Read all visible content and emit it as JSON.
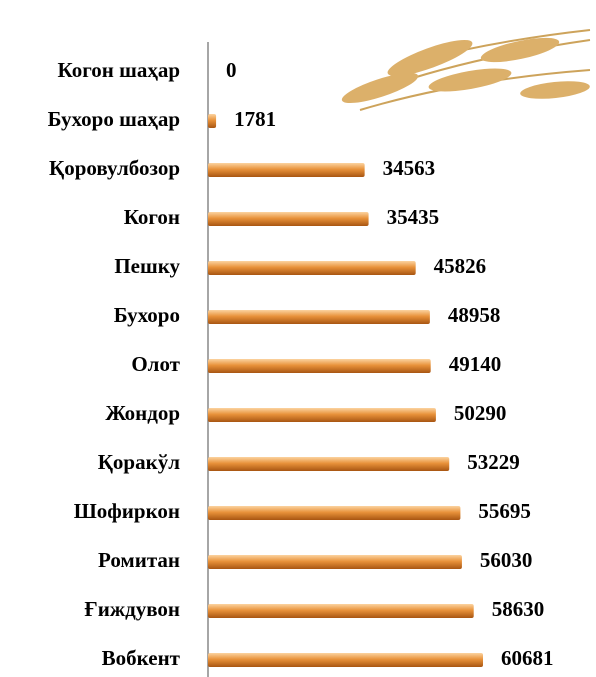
{
  "chart_data": {
    "type": "bar",
    "orientation": "horizontal",
    "categories": [
      "Когон шаҳар",
      "Бухоро шаҳар",
      "Қоровулбозор",
      "Когон",
      "Пешку",
      "Бухоро",
      "Олот",
      "Жондор",
      "Қоракўл",
      "Шофиркон",
      "Ромитан",
      "Ғиждувон",
      "Вобкент"
    ],
    "values": [
      0,
      1781,
      34563,
      35435,
      45826,
      48958,
      49140,
      50290,
      53229,
      55695,
      56030,
      58630,
      60681
    ],
    "color": "#e8923a"
  }
}
